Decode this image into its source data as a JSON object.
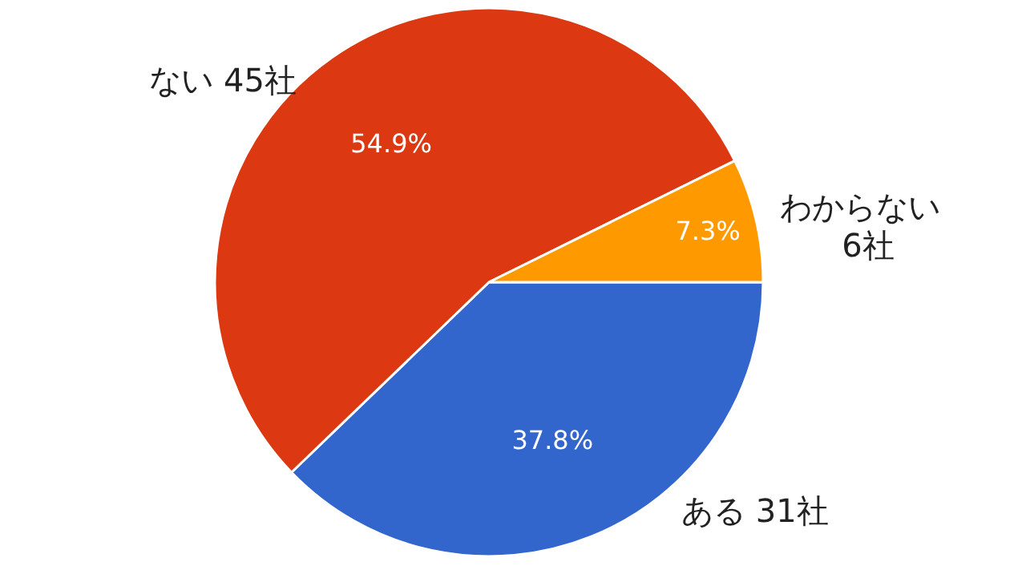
{
  "chart_data": {
    "type": "pie",
    "categories": [
      "ある 31社",
      "ない 45社",
      "わからない\n6社"
    ],
    "values": [
      37.8,
      54.9,
      7.3
    ],
    "value_labels": [
      "37.8%",
      "54.9%",
      "7.3%"
    ],
    "colors": [
      "#3366cc",
      "#dc3912",
      "#ff9900"
    ]
  }
}
